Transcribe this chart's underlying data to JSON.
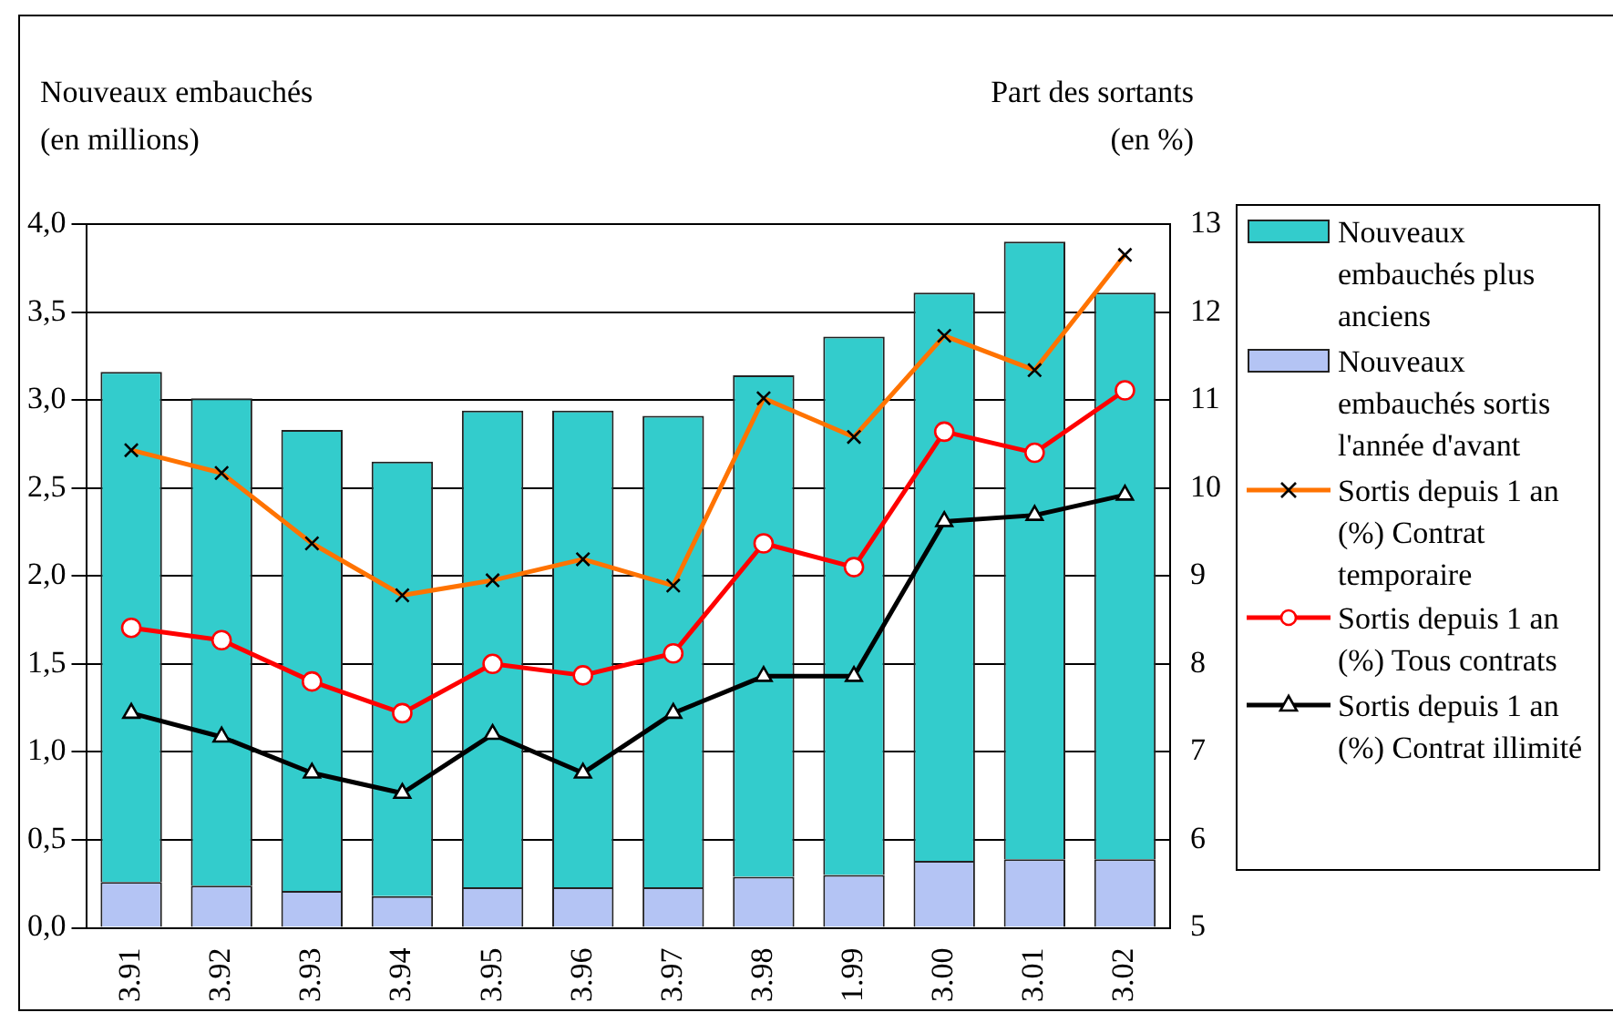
{
  "chart_data": {
    "type": "bar",
    "stacked": true,
    "ylabel": "Nouveaux embauchés\n(en millions)",
    "y2label": "Part des sortants\n(en %)",
    "categories": [
      "3.91",
      "3.92",
      "3.93",
      "3.94",
      "3.95",
      "3.96",
      "3.97",
      "3.98",
      "1.99",
      "3.00",
      "3.01",
      "3.02"
    ],
    "series": [
      {
        "name": "Nouveaux embauchés sortis l'année d'avant",
        "color": "#b4c4f4",
        "values": [
          0.26,
          0.24,
          0.21,
          0.18,
          0.23,
          0.23,
          0.23,
          0.29,
          0.3,
          0.38,
          0.39,
          0.39
        ]
      },
      {
        "name": "Nouveaux embauchés plus anciens",
        "color": "#33cccc",
        "values": [
          2.9,
          2.77,
          2.62,
          2.47,
          2.71,
          2.71,
          2.68,
          2.85,
          3.06,
          3.23,
          3.51,
          3.22
        ]
      },
      {
        "name": "Sortis depuis 1 an (%) Contrat temporaire",
        "type": "line",
        "axis": "y2",
        "marker": "cross",
        "color": "#ff7300",
        "values": [
          10.43,
          10.17,
          9.37,
          8.78,
          8.95,
          9.19,
          8.89,
          11.02,
          10.58,
          11.73,
          11.34,
          12.65
        ]
      },
      {
        "name": "Sortis depuis 1 an (%) Tous  contrats",
        "type": "line",
        "axis": "y2",
        "marker": "circle",
        "color": "#ff0000",
        "values": [
          8.41,
          8.27,
          7.8,
          7.44,
          8.0,
          7.87,
          8.12,
          9.37,
          9.1,
          10.64,
          10.4,
          11.11
        ]
      },
      {
        "name": "Sortis depuis 1 an (%) Contrat  illimité",
        "type": "line",
        "axis": "y2",
        "marker": "triangle",
        "color": "#000000",
        "values": [
          7.44,
          7.17,
          6.76,
          6.53,
          7.2,
          6.76,
          7.44,
          7.86,
          7.86,
          9.62,
          9.69,
          9.92
        ]
      }
    ],
    "ylim": [
      0,
      4
    ],
    "yticks": [
      {
        "value": 0,
        "label": "0,0"
      },
      {
        "value": 0.5,
        "label": "0,5"
      },
      {
        "value": 1,
        "label": "1,0"
      },
      {
        "value": 1.5,
        "label": "1,5"
      },
      {
        "value": 2,
        "label": "2,0"
      },
      {
        "value": 2.5,
        "label": "2,5"
      },
      {
        "value": 3,
        "label": "3,0"
      },
      {
        "value": 3.5,
        "label": "3,5"
      },
      {
        "value": 4,
        "label": "4,0"
      }
    ],
    "y2lim": [
      5,
      13
    ],
    "y2ticks": [
      5,
      6,
      7,
      8,
      9,
      10,
      11,
      12,
      13
    ],
    "grid": "y",
    "legend": "right"
  }
}
